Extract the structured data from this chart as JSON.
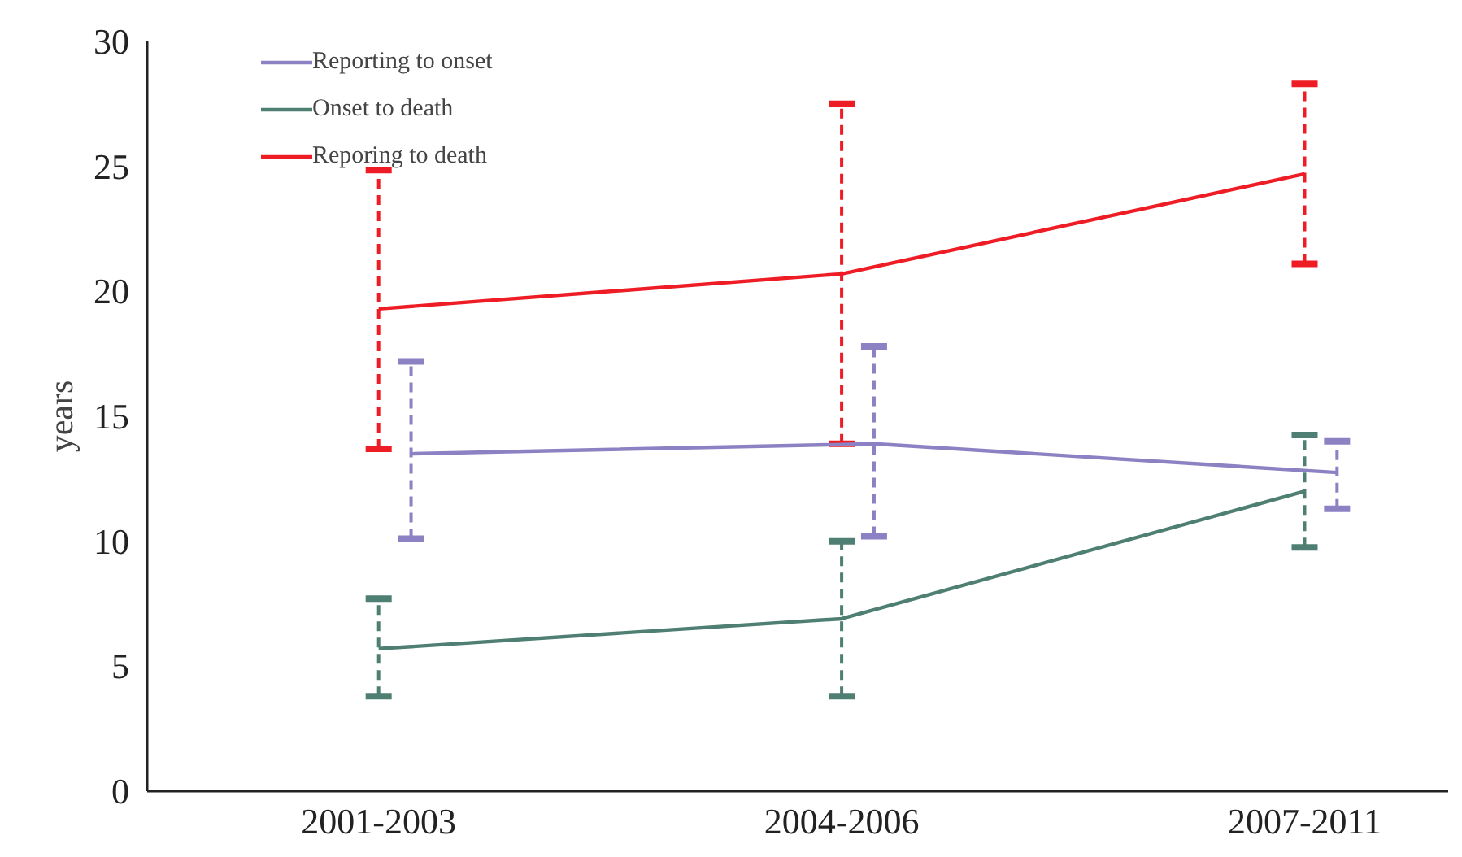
{
  "chart_data": {
    "type": "line",
    "ylabel": "years",
    "categories": [
      "2001-2003",
      "2004-2006",
      "2007-2011"
    ],
    "series": [
      {
        "name": "Reporting to onset",
        "color": "#8c82c3",
        "values": [
          13.5,
          13.9,
          12.75
        ],
        "errors": [
          [
            10.1,
            17.2
          ],
          [
            10.2,
            17.8
          ],
          [
            11.3,
            14.0
          ]
        ]
      },
      {
        "name": "Onset to death",
        "color": "#4e7f72",
        "values": [
          5.7,
          6.9,
          12.0
        ],
        "errors": [
          [
            3.8,
            7.7
          ],
          [
            3.8,
            10.0
          ],
          [
            9.75,
            14.25
          ]
        ]
      },
      {
        "name": "Reporing to death",
        "color": "#ee1c25",
        "values": [
          19.3,
          20.7,
          24.7
        ],
        "errors": [
          [
            13.7,
            24.85
          ],
          [
            13.9,
            27.5
          ],
          [
            21.1,
            28.3
          ]
        ]
      }
    ],
    "ylim": [
      0,
      30
    ],
    "yticks": [
      0,
      5,
      10,
      15,
      20,
      25,
      30
    ],
    "grid": false,
    "legend": "top left",
    "line_style": "solid"
  }
}
